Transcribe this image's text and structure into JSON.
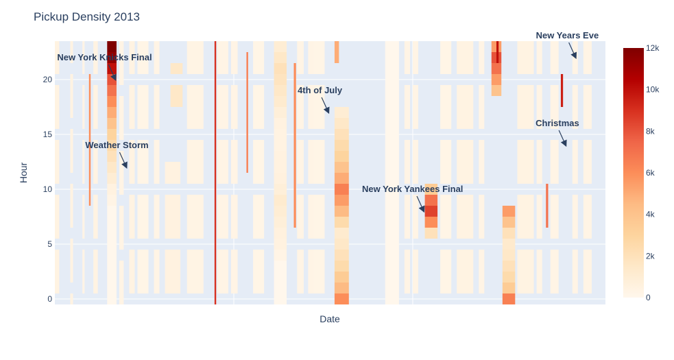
{
  "chart_data": {
    "type": "heatmap",
    "title": "Pickup Density 2013",
    "xlabel": "Date",
    "ylabel": "Hour",
    "y_range": [
      -0.5,
      23.5
    ],
    "y_ticks": [
      0,
      5,
      10,
      15,
      20
    ],
    "colorscale": "OrRd",
    "colorbar": {
      "min": 0,
      "max": 12000,
      "ticks": [
        {
          "value": 0,
          "label": "0"
        },
        {
          "value": 2000,
          "label": "2k"
        },
        {
          "value": 4000,
          "label": "4k"
        },
        {
          "value": 6000,
          "label": "6k"
        },
        {
          "value": 8000,
          "label": "8k"
        },
        {
          "value": 10000,
          "label": "10k"
        },
        {
          "value": 12000,
          "label": "12k"
        }
      ]
    },
    "annotations": [
      {
        "text": "New York Knicks Final",
        "x": 0.11,
        "y": 20
      },
      {
        "text": "Weather Storm",
        "x": 0.13,
        "y": 12
      },
      {
        "text": "4th of July",
        "x": 0.497,
        "y": 17
      },
      {
        "text": "New York Yankees Final",
        "x": 0.67,
        "y": 8
      },
      {
        "text": "Christmas",
        "x": 0.928,
        "y": 14
      },
      {
        "text": "New Years Eve",
        "x": 0.946,
        "y": 22
      }
    ],
    "blocks": [
      {
        "x0": 0.095,
        "x1": 0.112,
        "y0": 0,
        "y1": 23,
        "values": [
          0,
          0,
          0,
          0,
          0,
          0,
          0,
          0,
          0,
          300,
          500,
          1000,
          1500,
          2000,
          2500,
          3000,
          4000,
          5000,
          6000,
          7000,
          8000,
          10000,
          11500,
          12000
        ]
      },
      {
        "x0": 0.508,
        "x1": 0.534,
        "y0": 0,
        "y1": 17,
        "values": [
          6000,
          4500,
          3500,
          2500,
          2000,
          1500,
          1200,
          2500,
          4500,
          5500,
          6500,
          5000,
          4000,
          3000,
          2500,
          2000,
          1500,
          1000
        ]
      },
      {
        "x0": 0.672,
        "x1": 0.695,
        "y0": 6,
        "y1": 10,
        "values": [
          2000,
          6000,
          8500,
          7000,
          3500
        ]
      },
      {
        "x0": 0.793,
        "x1": 0.811,
        "y0": 19,
        "y1": 23,
        "values": [
          4000,
          5500,
          7000,
          8000,
          5500
        ]
      },
      {
        "x0": 0.813,
        "x1": 0.836,
        "y0": 0,
        "y1": 8,
        "values": [
          6500,
          3500,
          2500,
          2000,
          1500,
          1300,
          2000,
          4000,
          5500
        ]
      },
      {
        "x0": 0.398,
        "x1": 0.421,
        "y0": 0,
        "y1": 23,
        "values": [
          0,
          0,
          0,
          0,
          300,
          500,
          600,
          800,
          1000,
          1200,
          800,
          600,
          500,
          500,
          400,
          400,
          500,
          800,
          1200,
          1500,
          1800,
          2000,
          1500,
          1000
        ]
      },
      {
        "x0": 0.6,
        "x1": 0.625,
        "y0": 0,
        "y1": 23,
        "values": [
          0,
          0,
          0,
          0,
          0,
          0,
          0,
          0,
          0,
          0,
          0,
          0,
          0,
          0,
          0,
          0,
          0,
          0,
          0,
          0,
          0,
          0,
          0,
          0
        ]
      }
    ],
    "stripes": [
      {
        "x": 0.062,
        "w": 0.003,
        "y0": 9,
        "y1": 20,
        "value": 6000
      },
      {
        "x": 0.29,
        "w": 0.003,
        "y0": 0,
        "y1": 23,
        "value": 9000
      },
      {
        "x": 0.348,
        "w": 0.003,
        "y0": 12,
        "y1": 22,
        "value": 6500
      },
      {
        "x": 0.434,
        "w": 0.004,
        "y0": 7,
        "y1": 21,
        "value": 6000
      },
      {
        "x": 0.508,
        "w": 0.008,
        "y0": 22,
        "y1": 23,
        "value": 5000
      },
      {
        "x": 0.892,
        "w": 0.004,
        "y0": 7,
        "y1": 10,
        "value": 7000
      },
      {
        "x": 0.919,
        "w": 0.004,
        "y0": 18,
        "y1": 20,
        "value": 9500
      },
      {
        "x": 0.802,
        "w": 0.004,
        "y0": 22,
        "y1": 23,
        "value": 10000
      }
    ],
    "light_columns": [
      {
        "x": 0.0,
        "w": 0.008,
        "y0": 0,
        "y1": 23,
        "value": 400
      },
      {
        "x": 0.028,
        "w": 0.005,
        "y0": 0,
        "y1": 23,
        "value": 400
      },
      {
        "x": 0.05,
        "w": 0.004,
        "y0": 0,
        "y1": 23,
        "value": 300
      },
      {
        "x": 0.07,
        "w": 0.008,
        "y0": 0,
        "y1": 23,
        "value": 400
      },
      {
        "x": 0.117,
        "w": 0.008,
        "y0": 0,
        "y1": 23,
        "value": 300
      },
      {
        "x": 0.135,
        "w": 0.01,
        "y0": 0,
        "y1": 23,
        "value": 400
      },
      {
        "x": 0.15,
        "w": 0.02,
        "y0": 0,
        "y1": 23,
        "value": 250
      },
      {
        "x": 0.18,
        "w": 0.01,
        "y0": 0,
        "y1": 23,
        "value": 300
      },
      {
        "x": 0.2,
        "w": 0.028,
        "y0": 0,
        "y1": 12,
        "value": 500
      },
      {
        "x": 0.21,
        "w": 0.022,
        "y0": 18,
        "y1": 21,
        "value": 1500
      },
      {
        "x": 0.24,
        "w": 0.03,
        "y0": 0,
        "y1": 23,
        "value": 350
      },
      {
        "x": 0.295,
        "w": 0.01,
        "y0": 0,
        "y1": 23,
        "value": 300
      },
      {
        "x": 0.305,
        "w": 0.01,
        "y0": 0,
        "y1": 23,
        "value": 300
      },
      {
        "x": 0.32,
        "w": 0.012,
        "y0": 0,
        "y1": 23,
        "value": 300
      },
      {
        "x": 0.36,
        "w": 0.02,
        "y0": 0,
        "y1": 23,
        "value": 250
      },
      {
        "x": 0.44,
        "w": 0.012,
        "y0": 0,
        "y1": 23,
        "value": 300
      },
      {
        "x": 0.46,
        "w": 0.012,
        "y0": 0,
        "y1": 23,
        "value": 300
      },
      {
        "x": 0.47,
        "w": 0.02,
        "y0": 0,
        "y1": 23,
        "value": 250
      },
      {
        "x": 0.6,
        "w": 0.025,
        "y0": 0,
        "y1": 23,
        "value": 350
      },
      {
        "x": 0.635,
        "w": 0.01,
        "y0": 0,
        "y1": 23,
        "value": 300
      },
      {
        "x": 0.65,
        "w": 0.01,
        "y0": 0,
        "y1": 23,
        "value": 300
      },
      {
        "x": 0.7,
        "w": 0.02,
        "y0": 0,
        "y1": 23,
        "value": 250
      },
      {
        "x": 0.73,
        "w": 0.03,
        "y0": 0,
        "y1": 23,
        "value": 400
      },
      {
        "x": 0.77,
        "w": 0.01,
        "y0": 0,
        "y1": 23,
        "value": 300
      },
      {
        "x": 0.84,
        "w": 0.03,
        "y0": 0,
        "y1": 23,
        "value": 400
      },
      {
        "x": 0.875,
        "w": 0.01,
        "y0": 0,
        "y1": 23,
        "value": 300
      },
      {
        "x": 0.9,
        "w": 0.015,
        "y0": 0,
        "y1": 23,
        "value": 300
      },
      {
        "x": 0.94,
        "w": 0.01,
        "y0": 0,
        "y1": 23,
        "value": 300
      },
      {
        "x": 0.96,
        "w": 0.015,
        "y0": 0,
        "y1": 23,
        "value": 300
      }
    ]
  }
}
